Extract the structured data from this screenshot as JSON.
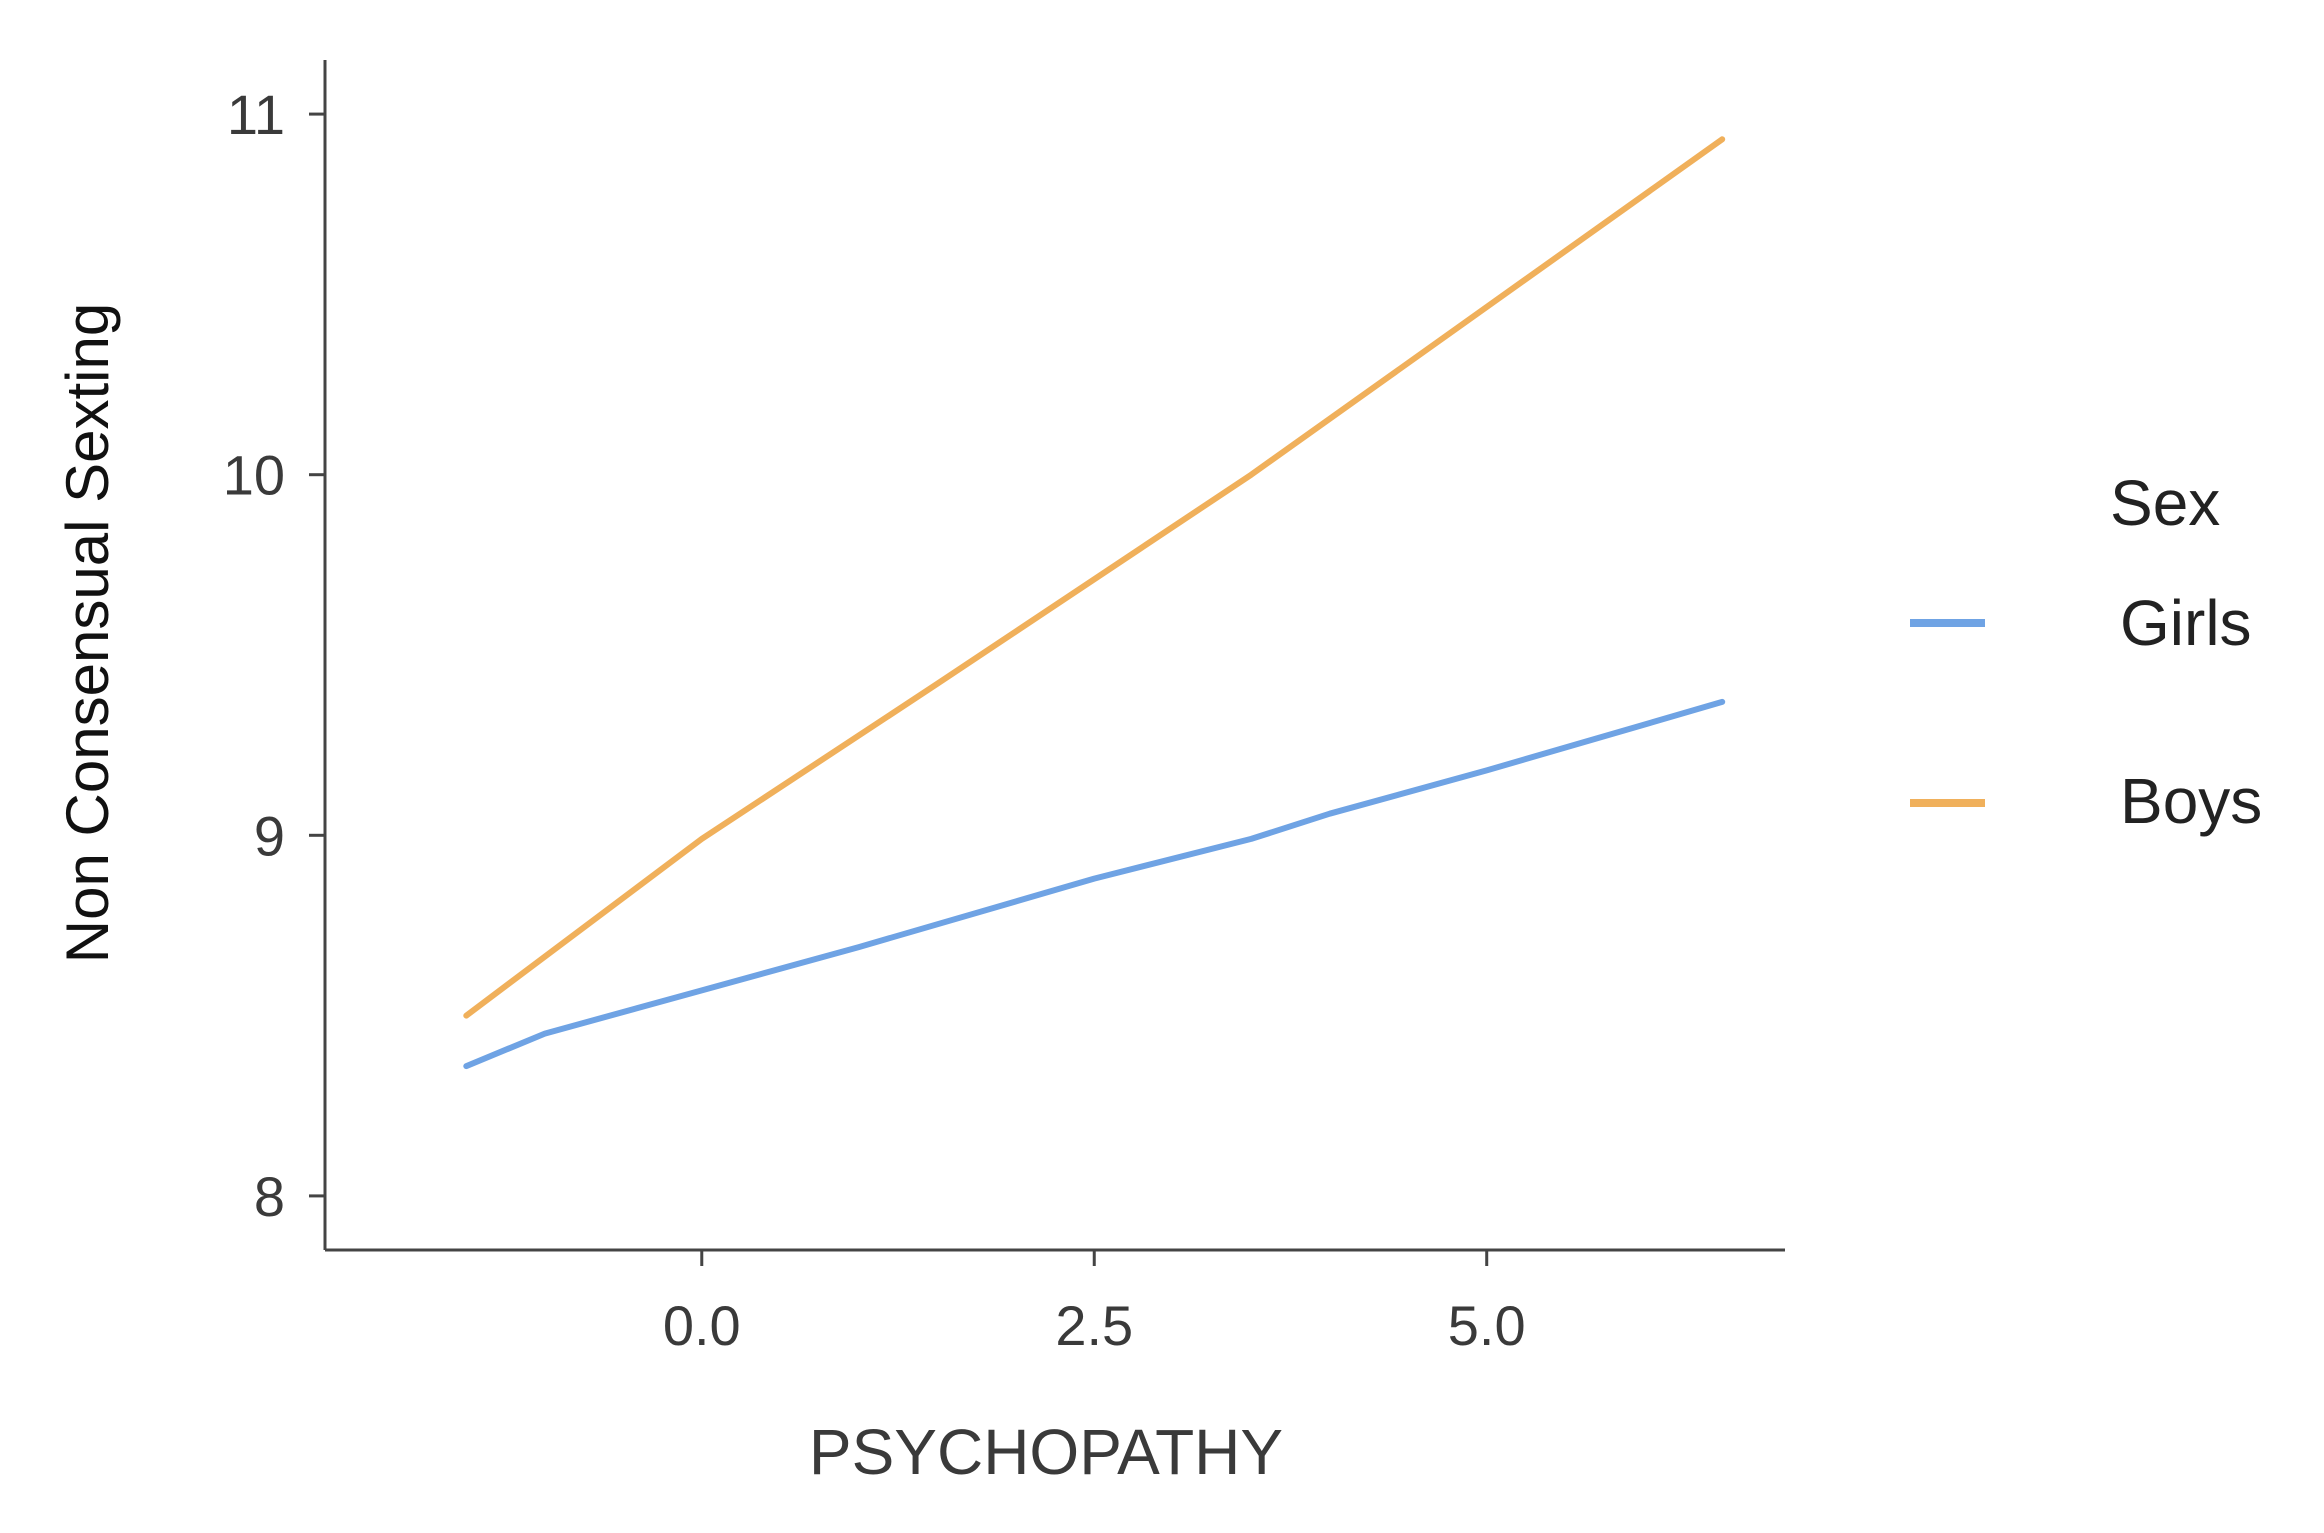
{
  "chart_data": {
    "type": "line",
    "title": "",
    "xlabel": "PSYCHOPATHY",
    "ylabel": "Non Consensual  Sexting",
    "xlim": [
      -2.4,
      6.9
    ],
    "ylim": [
      7.85,
      11.15
    ],
    "xticks": [
      0.0,
      2.5,
      5.0
    ],
    "xtick_labels": [
      "0.0",
      "2.5",
      "5.0"
    ],
    "yticks": [
      8,
      9,
      10,
      11
    ],
    "ytick_labels": [
      "8",
      "9",
      "10",
      "11"
    ],
    "grid": false,
    "legend": {
      "title": "Sex",
      "position": "right"
    },
    "series": [
      {
        "name": "Girls",
        "color": "#6fa3e4",
        "x": [
          -1.5,
          -1.0,
          0.0,
          1.0,
          2.5,
          3.5,
          4.0,
          5.0,
          6.5
        ],
        "y": [
          8.36,
          8.45,
          8.57,
          8.69,
          8.88,
          8.99,
          9.06,
          9.18,
          9.37
        ]
      },
      {
        "name": "Boys",
        "color": "#f0b05b",
        "x": [
          -1.5,
          0.0,
          1.5,
          3.5,
          6.5
        ],
        "y": [
          8.5,
          8.99,
          9.42,
          10.0,
          10.93
        ]
      }
    ]
  }
}
